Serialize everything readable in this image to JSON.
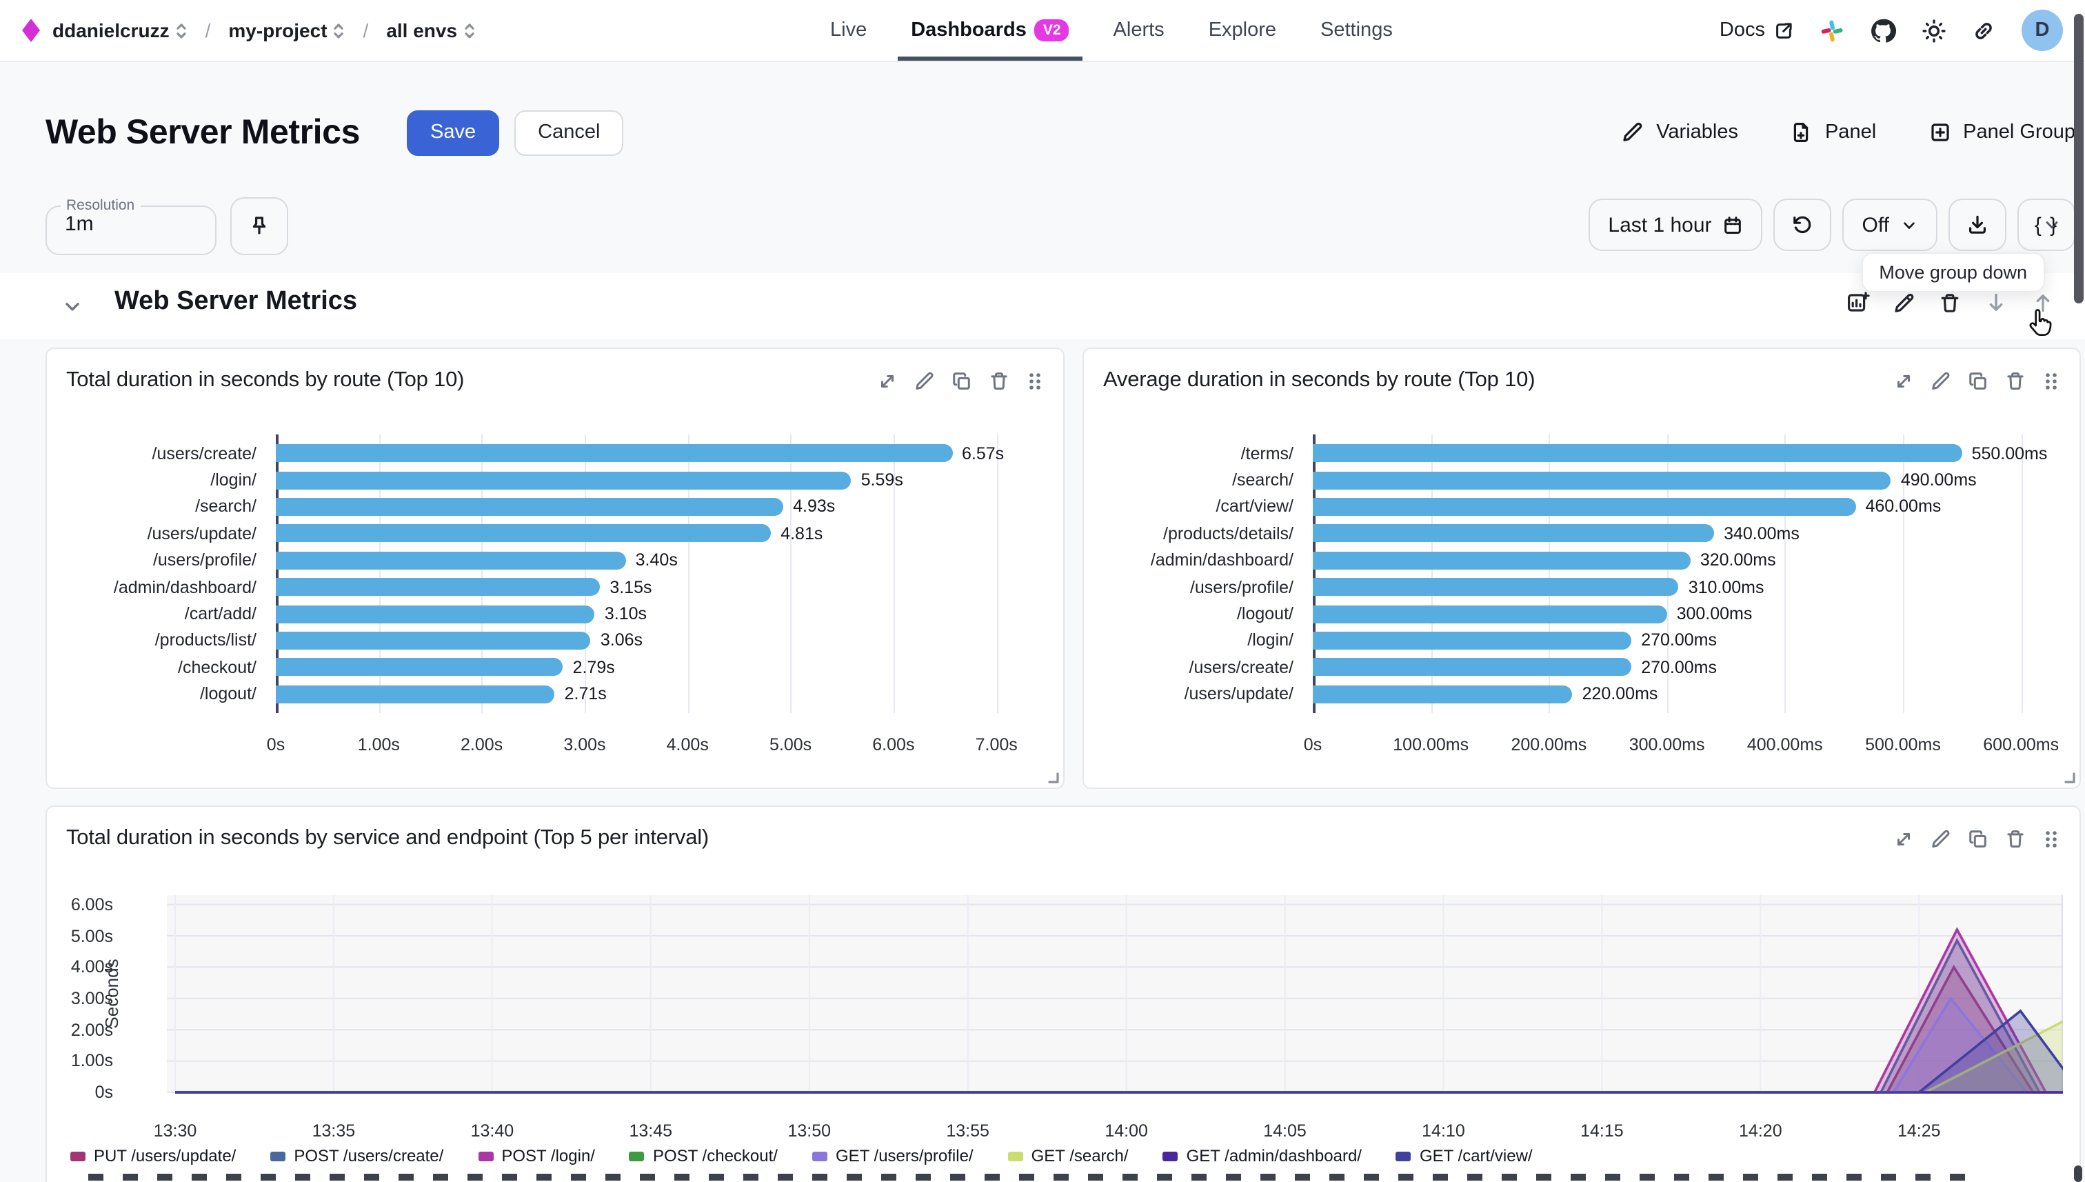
{
  "nav": {
    "breadcrumb": [
      "ddanielcruzz",
      "my-project",
      "all envs"
    ],
    "separator": "/",
    "tabs": [
      {
        "label": "Live"
      },
      {
        "label": "Dashboards",
        "badge": "V2"
      },
      {
        "label": "Alerts"
      },
      {
        "label": "Explore"
      },
      {
        "label": "Settings"
      }
    ],
    "docs_label": "Docs",
    "avatar_initial": "D"
  },
  "header": {
    "title": "Web Server Metrics",
    "save_label": "Save",
    "cancel_label": "Cancel",
    "actions": [
      {
        "label": "Variables"
      },
      {
        "label": "Panel"
      },
      {
        "label": "Panel Group"
      }
    ]
  },
  "toolbar": {
    "resolution_label": "Resolution",
    "resolution_value": "1m",
    "time_range": "Last 1 hour",
    "refresh_interval": "Off",
    "code_button": "{ }"
  },
  "tooltip": "Move group down",
  "group": {
    "title": "Web Server Metrics"
  },
  "colors": {
    "accent_magenta": "#e438e4",
    "save_blue": "#3a63d6",
    "bar_blue": "#57ace0"
  },
  "panels": [
    {
      "title": "Total duration in seconds by route (Top 10)",
      "chart_data": {
        "type": "bar",
        "orientation": "horizontal",
        "title": "Total duration in seconds by route (Top 10)",
        "categories": [
          "/users/create/",
          "/login/",
          "/search/",
          "/users/update/",
          "/users/profile/",
          "/admin/dashboard/",
          "/cart/add/",
          "/products/list/",
          "/checkout/",
          "/logout/"
        ],
        "values": [
          6.57,
          5.59,
          4.93,
          4.81,
          3.4,
          3.15,
          3.1,
          3.06,
          2.79,
          2.71
        ],
        "value_labels": [
          "6.57s",
          "5.59s",
          "4.93s",
          "4.81s",
          "3.40s",
          "3.15s",
          "3.10s",
          "3.06s",
          "2.79s",
          "2.71s"
        ],
        "x_ticks": [
          "0s",
          "1.00s",
          "2.00s",
          "3.00s",
          "4.00s",
          "5.00s",
          "6.00s",
          "7.00s"
        ],
        "x_tick_values": [
          0,
          1,
          2,
          3,
          4,
          5,
          6,
          7
        ],
        "axis_max": 7.3,
        "bar_color": "#57ace0"
      }
    },
    {
      "title": "Average duration in seconds by route (Top 10)",
      "chart_data": {
        "type": "bar",
        "orientation": "horizontal",
        "title": "Average duration in seconds by route (Top 10)",
        "categories": [
          "/terms/",
          "/search/",
          "/cart/view/",
          "/products/details/",
          "/admin/dashboard/",
          "/users/profile/",
          "/logout/",
          "/login/",
          "/users/create/",
          "/users/update/"
        ],
        "values": [
          550,
          490,
          460,
          340,
          320,
          310,
          300,
          270,
          270,
          220
        ],
        "value_labels": [
          "550.00ms",
          "490.00ms",
          "460.00ms",
          "340.00ms",
          "320.00ms",
          "310.00ms",
          "300.00ms",
          "270.00ms",
          "270.00ms",
          "220.00ms"
        ],
        "x_ticks": [
          "0s",
          "100.00ms",
          "200.00ms",
          "300.00ms",
          "400.00ms",
          "500.00ms",
          "600.00ms"
        ],
        "x_tick_values": [
          0,
          100,
          200,
          300,
          400,
          500,
          600
        ],
        "axis_max": 625,
        "bar_color": "#57ace0"
      }
    },
    {
      "title": "Total duration in seconds by service and endpoint (Top 5 per interval)",
      "chart_data": {
        "type": "area",
        "title": "Total duration in seconds by service and endpoint (Top 5 per interval)",
        "ylabel": "Seconds",
        "y_ticks": [
          "0s",
          "1.00s",
          "2.00s",
          "3.00s",
          "4.00s",
          "5.00s",
          "6.00s"
        ],
        "y_tick_values": [
          0,
          1,
          2,
          3,
          4,
          5,
          6
        ],
        "y_max": 6.3,
        "x_ticks": [
          "13:30",
          "13:35",
          "13:40",
          "13:45",
          "13:50",
          "13:55",
          "14:00",
          "14:05",
          "14:10",
          "14:15",
          "14:20",
          "14:25"
        ],
        "x_tick_minutes": [
          0,
          5,
          10,
          15,
          20,
          25,
          30,
          35,
          40,
          45,
          50,
          55
        ],
        "x_max_minutes": 59.8,
        "legend_position": "bottom",
        "series": [
          {
            "name": "PUT /users/update/",
            "color": "#a03672",
            "points": [
              [
                0,
                0
              ],
              [
                54.0,
                0
              ],
              [
                56.1,
                4.0
              ],
              [
                58.6,
                0
              ],
              [
                59.8,
                0
              ]
            ]
          },
          {
            "name": "POST /users/create/",
            "color": "#4a689c",
            "points": [
              [
                0,
                0
              ],
              [
                53.8,
                0
              ],
              [
                56.2,
                4.85
              ],
              [
                58.8,
                0
              ],
              [
                59.8,
                0
              ]
            ]
          },
          {
            "name": "POST /login/",
            "color": "#ab37a4",
            "points": [
              [
                0,
                0
              ],
              [
                53.6,
                0
              ],
              [
                56.2,
                5.2
              ],
              [
                59.0,
                0
              ],
              [
                59.8,
                0
              ]
            ]
          },
          {
            "name": "POST /checkout/",
            "color": "#3f9a42",
            "points": [
              [
                0,
                0
              ],
              [
                59.8,
                0
              ]
            ]
          },
          {
            "name": "GET /users/profile/",
            "color": "#8a77dd",
            "points": [
              [
                0,
                0
              ],
              [
                54.2,
                0
              ],
              [
                56.0,
                3.0
              ],
              [
                58.4,
                0
              ],
              [
                59.8,
                0
              ]
            ]
          },
          {
            "name": "GET /search/",
            "color": "#cbdd70",
            "points": [
              [
                0,
                0
              ],
              [
                55.2,
                0
              ],
              [
                59.8,
                2.4
              ]
            ]
          },
          {
            "name": "GET /admin/dashboard/",
            "color": "#49289e",
            "points": [
              [
                0,
                0
              ],
              [
                59.8,
                0
              ]
            ]
          },
          {
            "name": "GET /cart/view/",
            "color": "#4040a0",
            "points": [
              [
                0,
                0
              ],
              [
                55.0,
                0
              ],
              [
                58.2,
                2.6
              ],
              [
                59.8,
                0.4
              ]
            ]
          }
        ]
      }
    }
  ]
}
